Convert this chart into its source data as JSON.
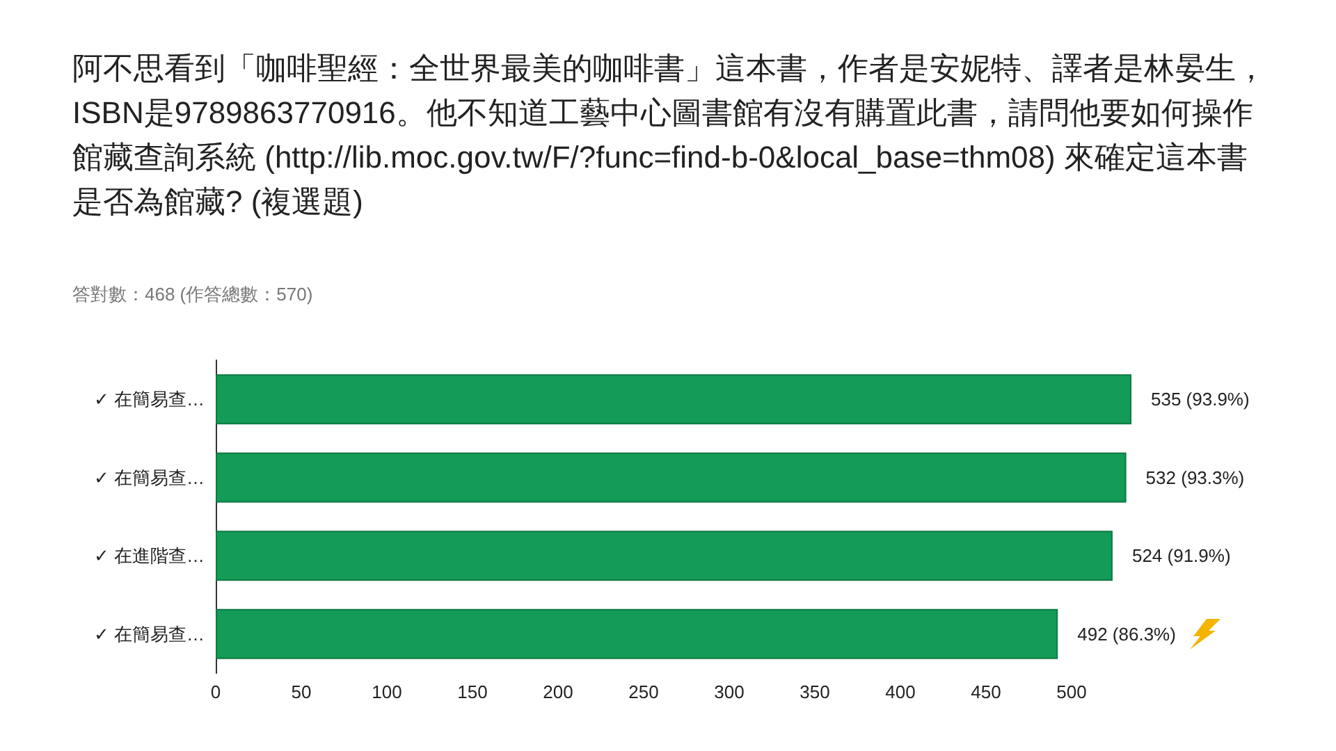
{
  "chart_data": {
    "type": "bar",
    "orientation": "horizontal",
    "title": "阿不思看到「咖啡聖經：全世界最美的咖啡書」這本書，作者是安妮特、譯者是林晏生，ISBN是9789863770916。他不知道工藝中心圖書館有沒有購置此書，請問他要如何操作館藏查詢系統 (http://lib.moc.gov.tw/F/?func=find-b-0&local_base=thm08) 來確定這本書是否為館藏? (複選題)",
    "subtitle": "答對數：468 (作答總數：570)",
    "categories": [
      "✓ 在簡易查…",
      "✓ 在簡易查…",
      "✓ 在進階查…",
      "✓ 在簡易查…"
    ],
    "values": [
      535,
      532,
      524,
      492
    ],
    "value_labels": [
      "535 (93.9%)",
      "532 (93.3%)",
      "524 (91.9%)",
      "492 (86.3%)"
    ],
    "color": "#149b57",
    "xlim": [
      0,
      535
    ],
    "xticks": [
      0,
      50,
      100,
      150,
      200,
      250,
      300,
      350,
      400,
      450,
      500
    ]
  }
}
